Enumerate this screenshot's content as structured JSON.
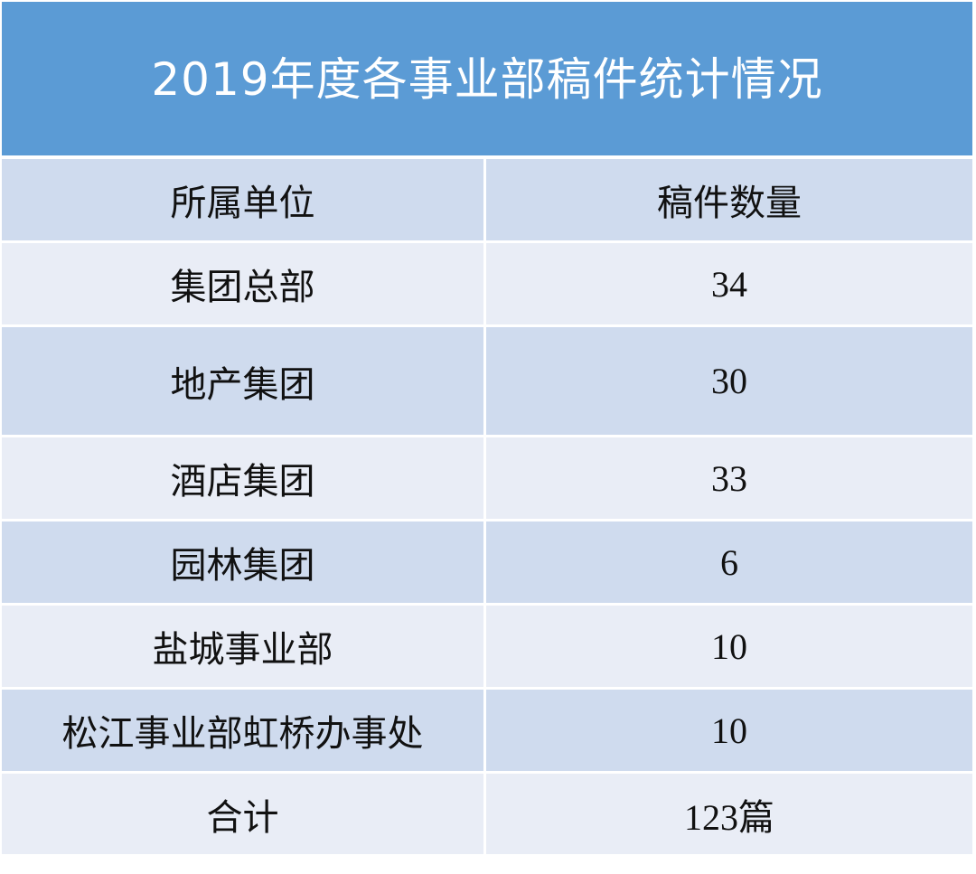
{
  "title": "2019年度各事业部稿件统计情况",
  "columns": [
    "所属单位",
    "稿件数量"
  ],
  "rows": [
    {
      "unit": "集团总部",
      "count": "34"
    },
    {
      "unit": "地产集团",
      "count": "30"
    },
    {
      "unit": "酒店集团",
      "count": "33"
    },
    {
      "unit": "园林集团",
      "count": "6"
    },
    {
      "unit": "盐城事业部",
      "count": "10"
    },
    {
      "unit": "松江事业部虹桥办事处",
      "count": "10"
    }
  ],
  "total": {
    "label": "合计",
    "count": "123",
    "suffix": "篇"
  },
  "colors": {
    "header_bg": "#5b9bd5",
    "row_dark": "#cfdbee",
    "row_light": "#e9edf6",
    "border": "#ffffff"
  }
}
